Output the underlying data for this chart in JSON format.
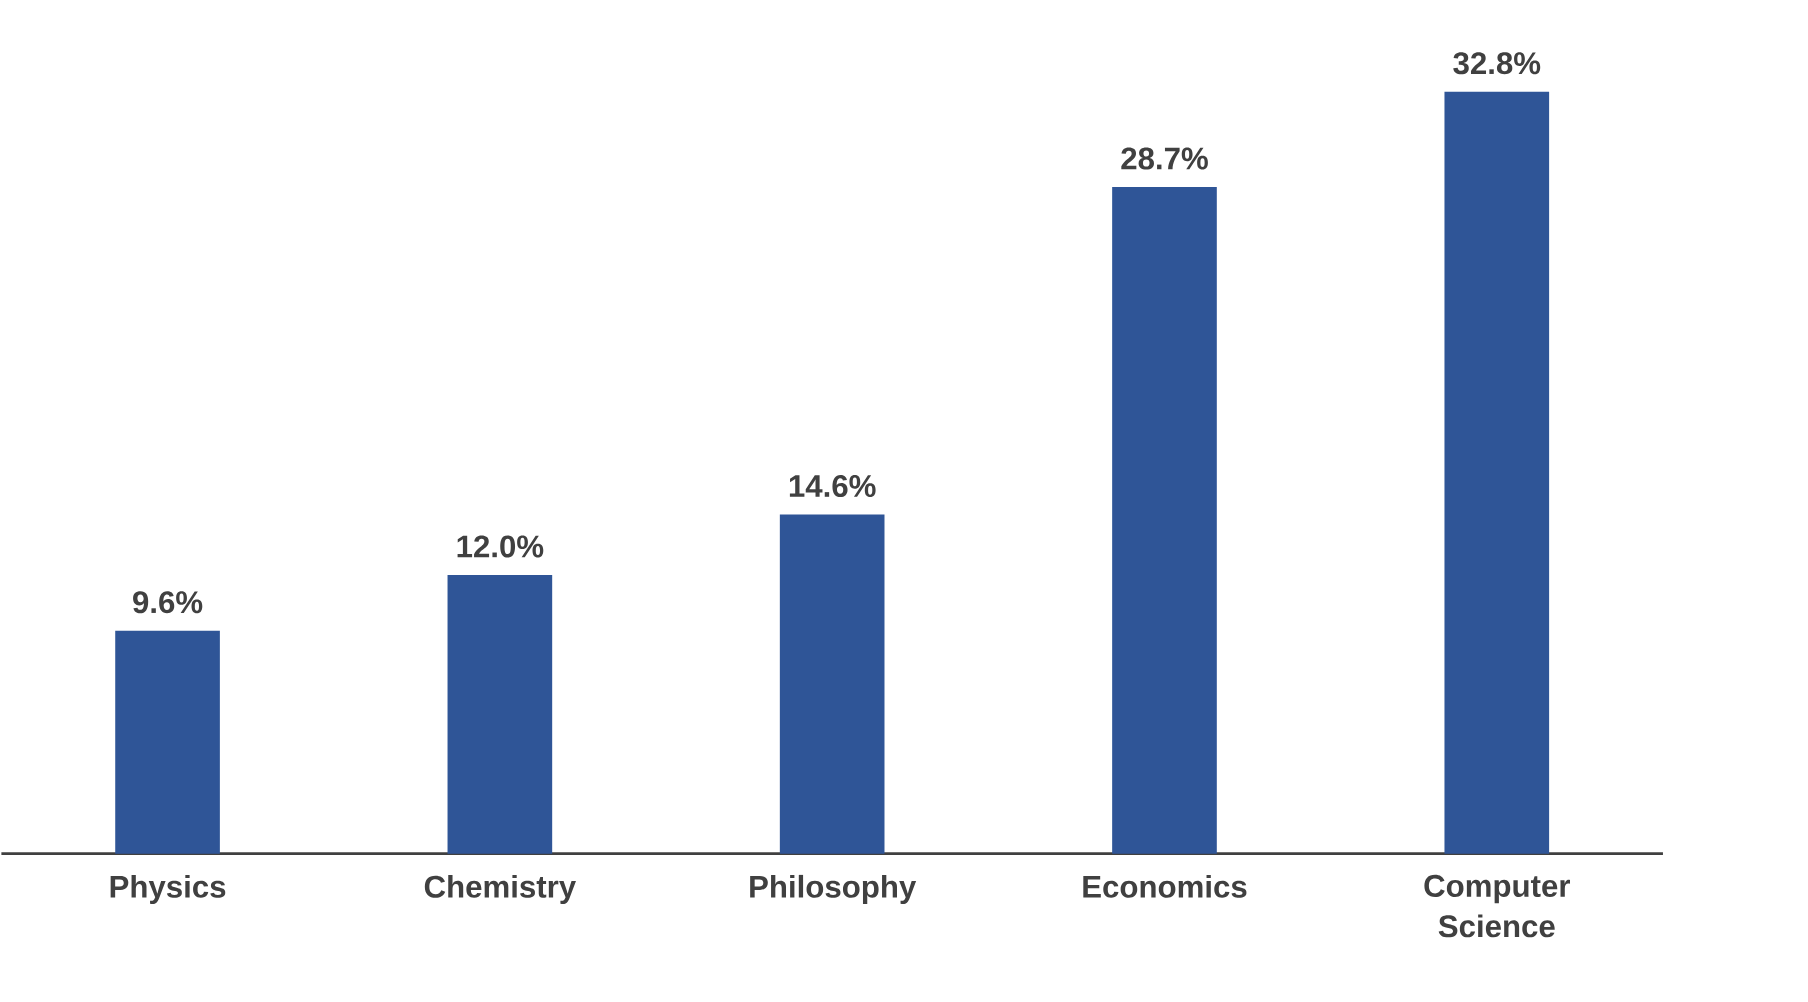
{
  "chart_data": {
    "type": "bar",
    "categories": [
      "Physics",
      "Chemistry",
      "Philosophy",
      "Economics",
      "Computer Science"
    ],
    "values": [
      9.6,
      12.0,
      14.6,
      28.7,
      32.8
    ],
    "value_labels": [
      "9.6%",
      "12.0%",
      "14.6%",
      "28.7%",
      "32.8%"
    ],
    "color": "#2f5597"
  }
}
